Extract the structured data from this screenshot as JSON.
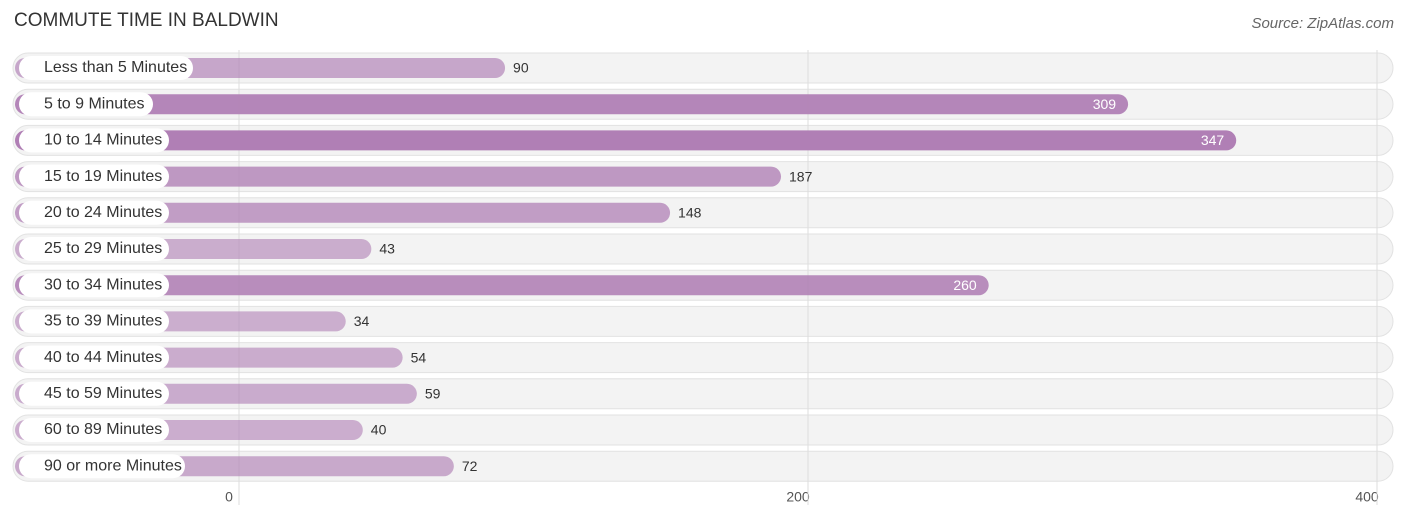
{
  "chart_data": {
    "type": "bar",
    "orientation": "horizontal",
    "title": "COMMUTE TIME IN BALDWIN",
    "source": "Source: ZipAtlas.com",
    "categories": [
      "Less than 5 Minutes",
      "5 to 9 Minutes",
      "10 to 14 Minutes",
      "15 to 19 Minutes",
      "20 to 24 Minutes",
      "25 to 29 Minutes",
      "30 to 34 Minutes",
      "35 to 39 Minutes",
      "40 to 44 Minutes",
      "45 to 59 Minutes",
      "60 to 89 Minutes",
      "90 or more Minutes"
    ],
    "values": [
      90,
      309,
      347,
      187,
      148,
      43,
      260,
      34,
      54,
      59,
      40,
      72
    ],
    "color": "#b07fb5",
    "xlim": [
      0,
      400
    ],
    "xticks": [
      0,
      200,
      400
    ],
    "grid": true
  }
}
